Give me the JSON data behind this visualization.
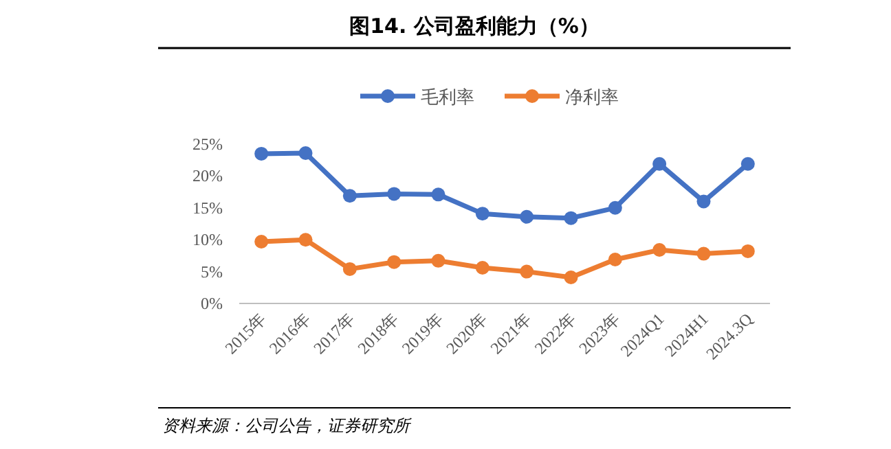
{
  "chart_data": {
    "type": "line",
    "title": "图14. 公司盈利能力（%）",
    "categories": [
      "2015年",
      "2016年",
      "2017年",
      "2018年",
      "2019年",
      "2020年",
      "2021年",
      "2022年",
      "2023年",
      "2024Q1",
      "2024H1",
      "2024.3Q"
    ],
    "series": [
      {
        "name": "毛利率",
        "color": "#4472c4",
        "values": [
          23.5,
          23.6,
          16.9,
          17.2,
          17.1,
          14.1,
          13.6,
          13.4,
          15.0,
          21.9,
          16.0,
          21.9
        ]
      },
      {
        "name": "净利率",
        "color": "#ed7d31",
        "values": [
          9.7,
          10.0,
          5.4,
          6.5,
          6.7,
          5.6,
          5.0,
          4.1,
          6.9,
          8.4,
          7.8,
          8.2
        ]
      }
    ],
    "ylim": [
      0,
      25
    ],
    "yticks": [
      {
        "value": 0,
        "label": "0%"
      },
      {
        "value": 5,
        "label": "5%"
      },
      {
        "value": 10,
        "label": "10%"
      },
      {
        "value": 15,
        "label": "15%"
      },
      {
        "value": 20,
        "label": "20%"
      },
      {
        "value": 25,
        "label": "25%"
      }
    ],
    "grid": false,
    "legend": "top",
    "marker": "circle",
    "line_style": "solid",
    "annotations": [
      "资料来源：公司公告，证券研究所"
    ]
  }
}
